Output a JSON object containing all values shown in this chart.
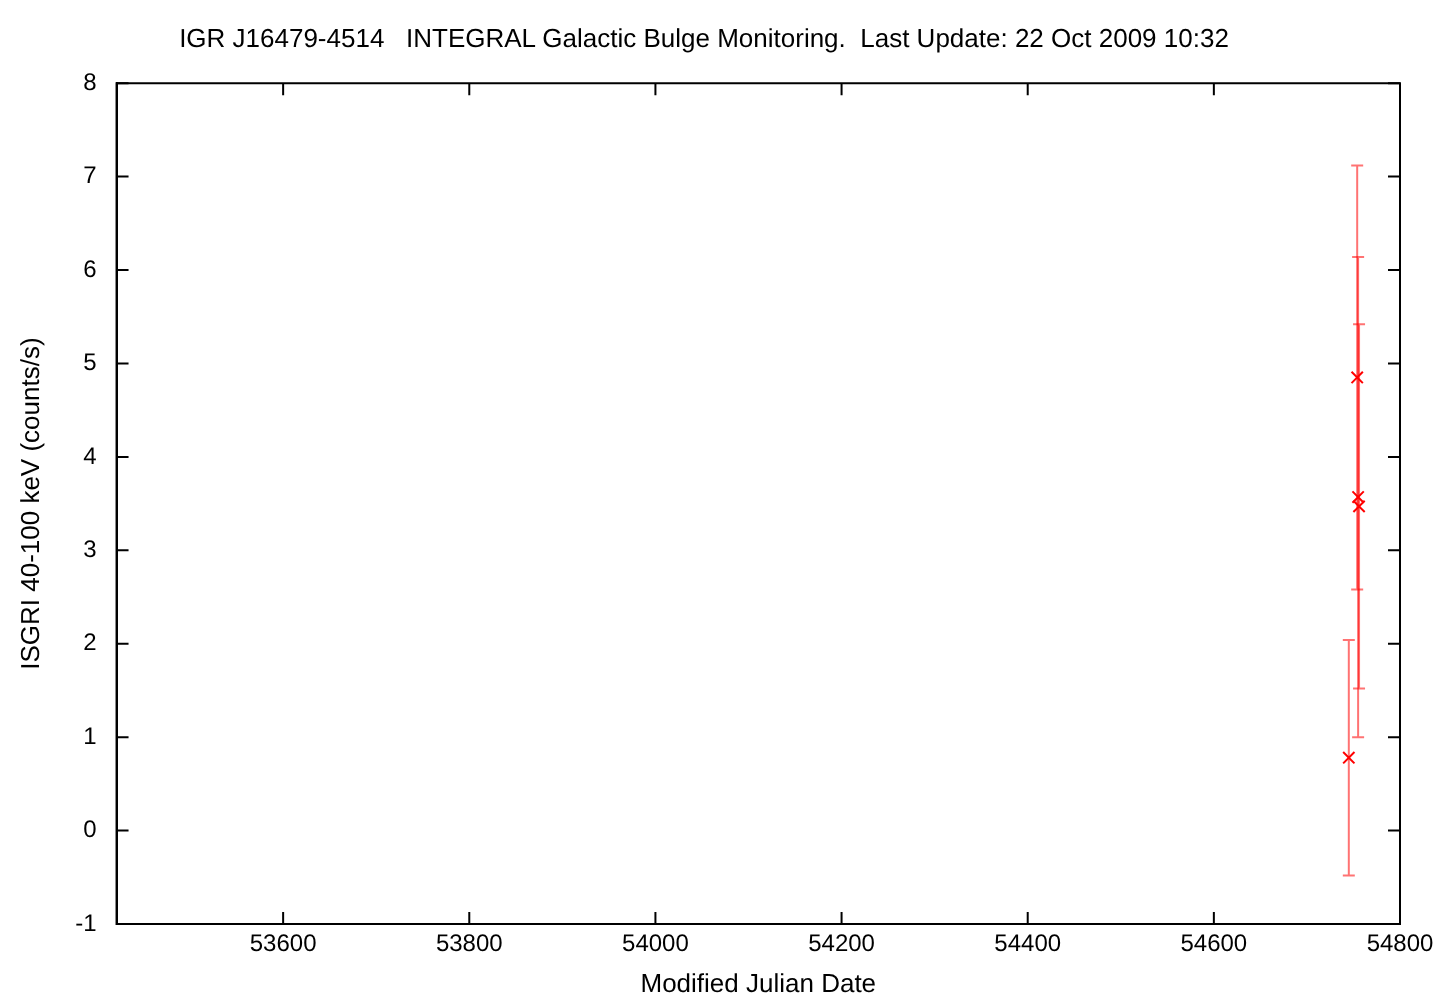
{
  "chart_data": {
    "type": "scatter",
    "title": "IGR J16479-4514   INTEGRAL Galactic Bulge Monitoring.  Last Update: 22 Oct 2009 10:32",
    "xlabel": "Modified Julian Date",
    "ylabel": "ISGRI 40-100 keV (counts/s)",
    "x": [
      54745,
      54754,
      54755,
      54756
    ],
    "series": [
      {
        "color": "#ff0000",
        "values": [
          0.78,
          4.85,
          3.57,
          3.47
        ],
        "errors": [
          1.26,
          2.27,
          2.57,
          1.95
        ]
      }
    ],
    "marker": "cross",
    "grid": false,
    "legend": false,
    "xlim": [
      53421,
      54800
    ],
    "xticks": [
      53600,
      53800,
      54000,
      54200,
      54400,
      54600,
      54800
    ],
    "ylim": [
      -1,
      8
    ],
    "yticks": [
      -1,
      0,
      1,
      2,
      3,
      4,
      5,
      6,
      7,
      8
    ]
  }
}
